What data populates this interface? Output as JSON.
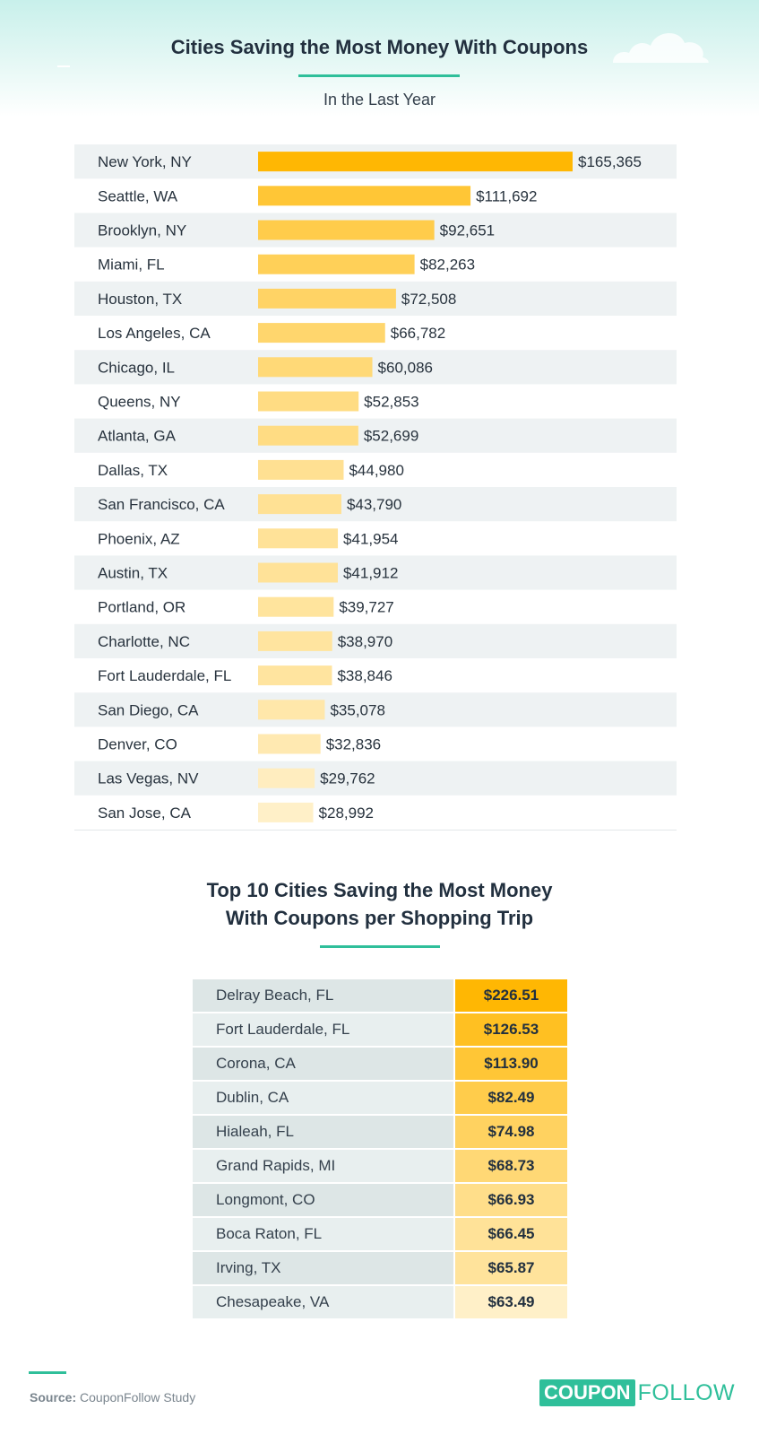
{
  "colors": {
    "accent": "#2fbf9a",
    "bar_max": "#ffb703",
    "bar_min": "#fff0c8"
  },
  "header": {
    "title": "Cities Saving the Most Money With Coupons",
    "subtitle": "In the Last Year"
  },
  "chart_data": [
    {
      "type": "bar",
      "orientation": "horizontal",
      "title": "Cities Saving the Most Money With Coupons",
      "subtitle": "In the Last Year",
      "categories": [
        "New York, NY",
        "Seattle, WA",
        "Brooklyn, NY",
        "Miami, FL",
        "Houston, TX",
        "Los Angeles, CA",
        "Chicago, IL",
        "Queens, NY",
        "Atlanta, GA",
        "Dallas, TX",
        "San Francisco, CA",
        "Phoenix, AZ",
        "Austin, TX",
        "Portland, OR",
        "Charlotte, NC",
        "Fort Lauderdale, FL",
        "San Diego, CA",
        "Denver, CO",
        "Las Vegas, NV",
        "San Jose, CA"
      ],
      "values": [
        165365,
        111692,
        92651,
        82263,
        72508,
        66782,
        60086,
        52853,
        52699,
        44980,
        43790,
        41954,
        41912,
        39727,
        38970,
        38846,
        35078,
        32836,
        29762,
        28992
      ],
      "labels": [
        "$165,365",
        "$111,692",
        "$92,651",
        "$82,263",
        "$72,508",
        "$66,782",
        "$60,086",
        "$52,853",
        "$52,699",
        "$44,980",
        "$43,790",
        "$41,954",
        "$41,912",
        "$39,727",
        "$38,970",
        "$38,846",
        "$35,078",
        "$32,836",
        "$29,762",
        "$28,992"
      ],
      "xlim": [
        0,
        165365
      ],
      "xlabel": "",
      "ylabel": "",
      "grid": false,
      "legend": "none"
    },
    {
      "type": "table",
      "title": "Top 10 Cities Saving the Most Money With Coupons per Shopping Trip",
      "categories": [
        "Delray Beach, FL",
        "Fort Lauderdale, FL",
        "Corona, CA",
        "Dublin, CA",
        "Hialeah, FL",
        "Grand Rapids, MI",
        "Longmont, CO",
        "Boca Raton, FL",
        "Irving, TX",
        "Chesapeake, VA"
      ],
      "values": [
        226.51,
        126.53,
        113.9,
        82.49,
        74.98,
        68.73,
        66.93,
        66.45,
        65.87,
        63.49
      ],
      "labels": [
        "$226.51",
        "$126.53",
        "$113.90",
        "$82.49",
        "$74.98",
        "$68.73",
        "$66.93",
        "$66.45",
        "$65.87",
        "$63.49"
      ]
    }
  ],
  "section2": {
    "title_line1": "Top 10 Cities Saving the Most Money",
    "title_line2": "With Coupons per Shopping Trip"
  },
  "footer": {
    "source_label": "Source:",
    "source_text": "CouponFollow Study",
    "logo_part1": "COUPON",
    "logo_part2": "FOLLOW"
  }
}
